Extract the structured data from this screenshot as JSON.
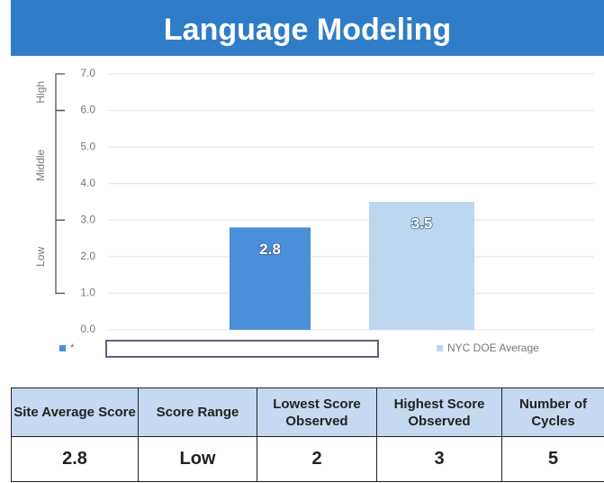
{
  "title": "Language Modeling",
  "chart_data": {
    "type": "bar",
    "categories": [
      null
    ],
    "series": [
      {
        "name": "*",
        "color": "#4a8fd8",
        "values": [
          2.8
        ]
      },
      {
        "name": "NYC DOE Average",
        "color": "#bcd6ef",
        "values": [
          3.5
        ]
      }
    ],
    "ylim": [
      0,
      7
    ],
    "yticks": [
      {
        "value": 0,
        "label": "0.0"
      },
      {
        "value": 1,
        "label": "1.0"
      },
      {
        "value": 2,
        "label": "2.0"
      },
      {
        "value": 3,
        "label": "3.0"
      },
      {
        "value": 4,
        "label": "4.0"
      },
      {
        "value": 5,
        "label": "5.0"
      },
      {
        "value": 6,
        "label": "6.0"
      },
      {
        "value": 7,
        "label": "7.0"
      }
    ],
    "grid": true,
    "legend": "bottom",
    "score_bands": [
      {
        "label": "High",
        "range": [
          6,
          7
        ]
      },
      {
        "label": "Middle",
        "range": [
          3,
          6
        ]
      },
      {
        "label": "Low",
        "range": [
          1,
          3
        ]
      }
    ]
  },
  "table": {
    "header": [
      "Site Average Score",
      "Score Range",
      "Lowest Score Observed",
      "Highest Score Observed",
      "Number of Cycles"
    ],
    "rows": [
      [
        "2.8",
        "Low",
        "2",
        "3",
        "5"
      ]
    ]
  }
}
